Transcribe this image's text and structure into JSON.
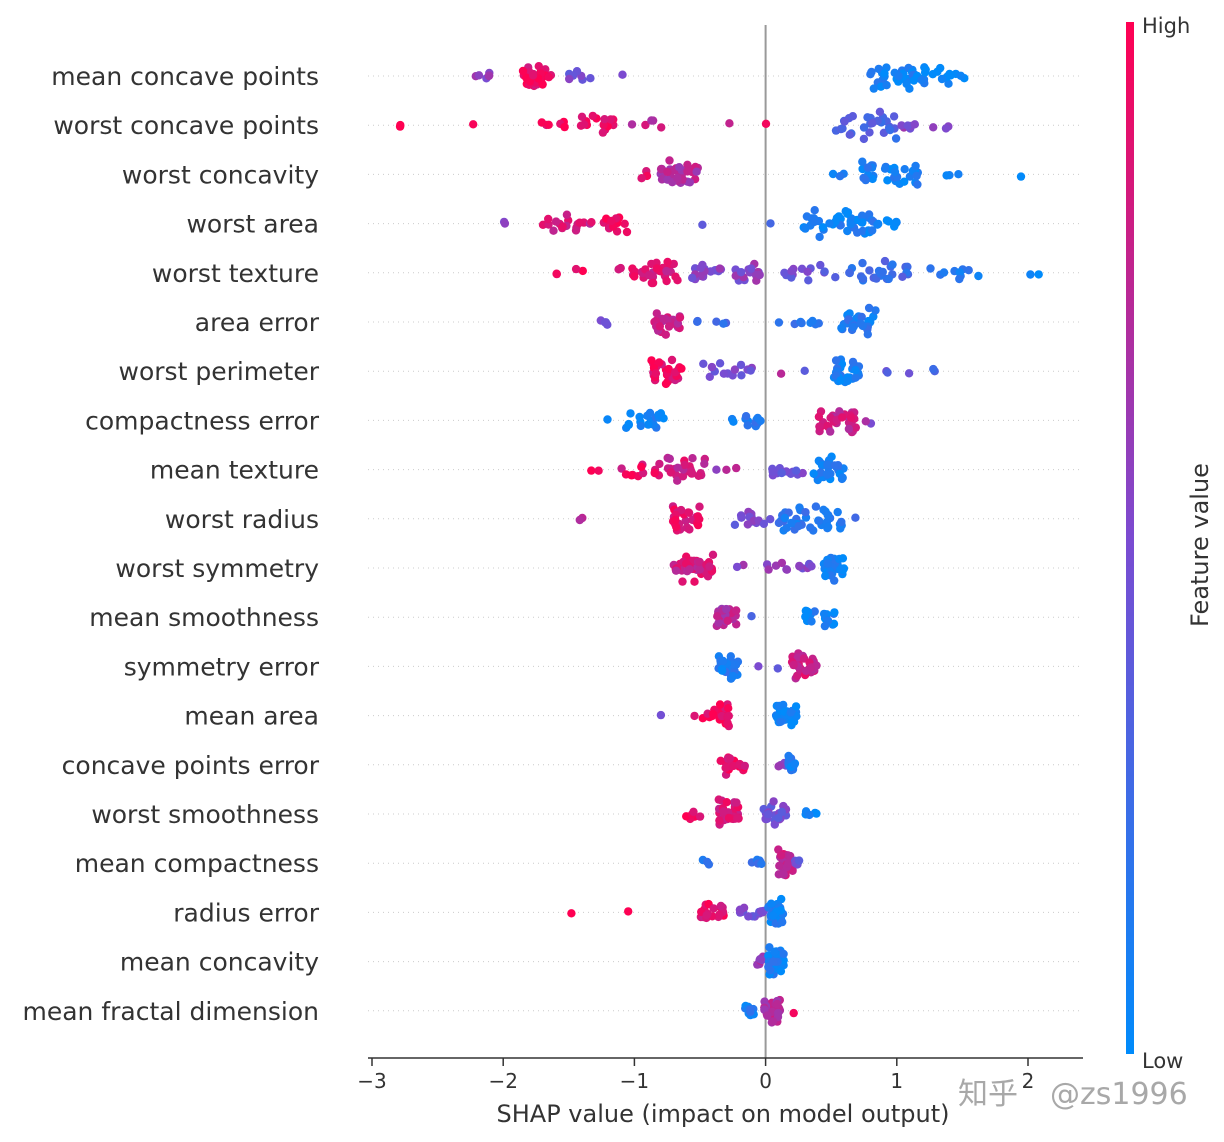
{
  "chart_data": {
    "type": "scatter",
    "subtype": "shap-beeswarm",
    "xlabel": "SHAP value (impact on model output)",
    "xlim": [
      -3,
      2.4
    ],
    "xticks": [
      -3,
      -2,
      -1,
      0,
      1,
      2
    ],
    "xtick_labels": [
      "−3",
      "−2",
      "−1",
      "0",
      "1",
      "2"
    ],
    "colorbar": {
      "label": "Feature value",
      "high_label": "High",
      "low_label": "Low",
      "high_color": "#ff0052",
      "low_color": "#008bfb"
    },
    "features": [
      {
        "name": "mean concave points",
        "clusters": [
          {
            "c": -1.75,
            "w": 0.12,
            "n": 30,
            "v": 0.92
          },
          {
            "c": -2.15,
            "w": 0.12,
            "n": 6,
            "v": 0.6
          },
          {
            "c": -1.4,
            "w": 0.12,
            "n": 8,
            "v": 0.45
          },
          {
            "c": -1.08,
            "w": 0.02,
            "n": 1,
            "v": 0.4
          },
          {
            "c": 1.0,
            "w": 0.22,
            "n": 36,
            "v": 0.06
          },
          {
            "c": 1.35,
            "w": 0.17,
            "n": 14,
            "v": 0.02
          }
        ]
      },
      {
        "name": "worst concave points",
        "clusters": [
          {
            "c": -2.75,
            "w": 0.06,
            "n": 2,
            "v": 1.0
          },
          {
            "c": -2.2,
            "w": 0.03,
            "n": 1,
            "v": 1.0
          },
          {
            "c": -1.65,
            "w": 0.14,
            "n": 6,
            "v": 0.95
          },
          {
            "c": -1.3,
            "w": 0.15,
            "n": 16,
            "v": 0.9
          },
          {
            "c": -0.88,
            "w": 0.14,
            "n": 5,
            "v": 0.78
          },
          {
            "c": -0.28,
            "w": 0.02,
            "n": 1,
            "v": 0.8
          },
          {
            "c": 0.02,
            "w": 0.02,
            "n": 1,
            "v": 0.85
          },
          {
            "c": 0.75,
            "w": 0.25,
            "n": 28,
            "v": 0.3
          },
          {
            "c": 1.2,
            "w": 0.2,
            "n": 9,
            "v": 0.55
          }
        ]
      },
      {
        "name": "worst concavity",
        "clusters": [
          {
            "c": -0.95,
            "w": 0.06,
            "n": 3,
            "v": 0.9
          },
          {
            "c": -0.65,
            "w": 0.15,
            "n": 36,
            "v": 0.72
          },
          {
            "c": 0.55,
            "w": 0.05,
            "n": 3,
            "v": 0.15
          },
          {
            "c": 0.95,
            "w": 0.22,
            "n": 32,
            "v": 0.08
          },
          {
            "c": 1.45,
            "w": 0.08,
            "n": 3,
            "v": 0.05
          },
          {
            "c": 1.95,
            "w": 0.02,
            "n": 1,
            "v": 0.02
          }
        ]
      },
      {
        "name": "worst area",
        "clusters": [
          {
            "c": -2.0,
            "w": 0.02,
            "n": 2,
            "v": 0.55
          },
          {
            "c": -1.5,
            "w": 0.2,
            "n": 18,
            "v": 0.82
          },
          {
            "c": -1.15,
            "w": 0.1,
            "n": 16,
            "v": 0.95
          },
          {
            "c": -0.5,
            "w": 0.02,
            "n": 1,
            "v": 0.4
          },
          {
            "c": 0.05,
            "w": 0.02,
            "n": 1,
            "v": 0.2
          },
          {
            "c": 0.55,
            "w": 0.28,
            "n": 48,
            "v": 0.08
          },
          {
            "c": 0.95,
            "w": 0.12,
            "n": 8,
            "v": 0.05
          }
        ]
      },
      {
        "name": "worst texture",
        "clusters": [
          {
            "c": -1.5,
            "w": 0.12,
            "n": 4,
            "v": 0.98
          },
          {
            "c": -1.1,
            "w": 0.15,
            "n": 6,
            "v": 0.9
          },
          {
            "c": -0.82,
            "w": 0.15,
            "n": 26,
            "v": 0.85
          },
          {
            "c": -0.45,
            "w": 0.12,
            "n": 18,
            "v": 0.55
          },
          {
            "c": -0.15,
            "w": 0.12,
            "n": 16,
            "v": 0.55
          },
          {
            "c": 0.35,
            "w": 0.22,
            "n": 14,
            "v": 0.45
          },
          {
            "c": 0.85,
            "w": 0.25,
            "n": 26,
            "v": 0.25
          },
          {
            "c": 1.45,
            "w": 0.2,
            "n": 10,
            "v": 0.1
          },
          {
            "c": 2.08,
            "w": 0.08,
            "n": 2,
            "v": 0.05
          }
        ]
      },
      {
        "name": "area error",
        "clusters": [
          {
            "c": -1.22,
            "w": 0.05,
            "n": 4,
            "v": 0.45
          },
          {
            "c": -0.75,
            "w": 0.1,
            "n": 24,
            "v": 0.78
          },
          {
            "c": -0.42,
            "w": 0.15,
            "n": 5,
            "v": 0.25
          },
          {
            "c": 0.25,
            "w": 0.2,
            "n": 8,
            "v": 0.15
          },
          {
            "c": 0.7,
            "w": 0.15,
            "n": 28,
            "v": 0.12
          }
        ]
      },
      {
        "name": "worst perimeter",
        "clusters": [
          {
            "c": -0.75,
            "w": 0.12,
            "n": 28,
            "v": 0.9
          },
          {
            "c": -0.3,
            "w": 0.2,
            "n": 14,
            "v": 0.5
          },
          {
            "c": 0.1,
            "w": 0.02,
            "n": 1,
            "v": 0.7
          },
          {
            "c": 0.3,
            "w": 0.02,
            "n": 1,
            "v": 0.4
          },
          {
            "c": 0.62,
            "w": 0.1,
            "n": 32,
            "v": 0.08
          },
          {
            "c": 1.05,
            "w": 0.25,
            "n": 5,
            "v": 0.35
          }
        ]
      },
      {
        "name": "compactness error",
        "clusters": [
          {
            "c": -1.22,
            "w": 0.02,
            "n": 1,
            "v": 0.1
          },
          {
            "c": -0.92,
            "w": 0.15,
            "n": 18,
            "v": 0.08
          },
          {
            "c": -0.15,
            "w": 0.12,
            "n": 14,
            "v": 0.12
          },
          {
            "c": 0.55,
            "w": 0.15,
            "n": 34,
            "v": 0.8
          },
          {
            "c": 0.78,
            "w": 0.03,
            "n": 2,
            "v": 0.6
          }
        ]
      },
      {
        "name": "mean texture",
        "clusters": [
          {
            "c": -1.3,
            "w": 0.03,
            "n": 2,
            "v": 1.0
          },
          {
            "c": -0.95,
            "w": 0.15,
            "n": 12,
            "v": 0.9
          },
          {
            "c": -0.6,
            "w": 0.15,
            "n": 26,
            "v": 0.82
          },
          {
            "c": -0.3,
            "w": 0.08,
            "n": 3,
            "v": 0.65
          },
          {
            "c": 0.15,
            "w": 0.15,
            "n": 12,
            "v": 0.45
          },
          {
            "c": 0.48,
            "w": 0.12,
            "n": 30,
            "v": 0.1
          }
        ]
      },
      {
        "name": "worst radius",
        "clusters": [
          {
            "c": -1.4,
            "w": 0.04,
            "n": 2,
            "v": 0.75
          },
          {
            "c": -0.6,
            "w": 0.12,
            "n": 28,
            "v": 0.88
          },
          {
            "c": -0.1,
            "w": 0.15,
            "n": 14,
            "v": 0.48
          },
          {
            "c": 0.35,
            "w": 0.25,
            "n": 42,
            "v": 0.15
          },
          {
            "c": 0.68,
            "w": 0.02,
            "n": 1,
            "v": 0.3
          }
        ]
      },
      {
        "name": "worst symmetry",
        "clusters": [
          {
            "c": -0.55,
            "w": 0.15,
            "n": 36,
            "v": 0.82
          },
          {
            "c": -0.2,
            "w": 0.04,
            "n": 2,
            "v": 0.6
          },
          {
            "c": 0.1,
            "w": 0.1,
            "n": 6,
            "v": 0.55
          },
          {
            "c": 0.3,
            "w": 0.05,
            "n": 6,
            "v": 0.5
          },
          {
            "c": 0.52,
            "w": 0.08,
            "n": 30,
            "v": 0.06
          }
        ]
      },
      {
        "name": "mean smoothness",
        "clusters": [
          {
            "c": -0.3,
            "w": 0.08,
            "n": 34,
            "v": 0.72
          },
          {
            "c": -0.1,
            "w": 0.01,
            "n": 1,
            "v": 0.3
          },
          {
            "c": 0.42,
            "w": 0.12,
            "n": 18,
            "v": 0.06
          }
        ]
      },
      {
        "name": "symmetry error",
        "clusters": [
          {
            "c": -0.28,
            "w": 0.08,
            "n": 28,
            "v": 0.12
          },
          {
            "c": -0.05,
            "w": 0.01,
            "n": 1,
            "v": 0.4
          },
          {
            "c": 0.1,
            "w": 0.01,
            "n": 1,
            "v": 0.3
          },
          {
            "c": 0.3,
            "w": 0.1,
            "n": 30,
            "v": 0.82
          }
        ]
      },
      {
        "name": "mean area",
        "clusters": [
          {
            "c": -0.8,
            "w": 0.01,
            "n": 1,
            "v": 0.55
          },
          {
            "c": -0.55,
            "w": 0.01,
            "n": 1,
            "v": 0.78
          },
          {
            "c": -0.38,
            "w": 0.1,
            "n": 24,
            "v": 0.95
          },
          {
            "c": 0.16,
            "w": 0.08,
            "n": 34,
            "v": 0.05
          }
        ]
      },
      {
        "name": "concave points error",
        "clusters": [
          {
            "c": -0.25,
            "w": 0.1,
            "n": 18,
            "v": 0.92
          },
          {
            "c": 0.12,
            "w": 0.05,
            "n": 4,
            "v": 0.55
          },
          {
            "c": 0.2,
            "w": 0.03,
            "n": 16,
            "v": 0.12
          }
        ]
      },
      {
        "name": "worst smoothness",
        "clusters": [
          {
            "c": -0.55,
            "w": 0.1,
            "n": 6,
            "v": 0.95
          },
          {
            "c": -0.28,
            "w": 0.08,
            "n": 32,
            "v": 0.85
          },
          {
            "c": 0.08,
            "w": 0.1,
            "n": 22,
            "v": 0.45
          },
          {
            "c": 0.33,
            "w": 0.06,
            "n": 6,
            "v": 0.08
          }
        ]
      },
      {
        "name": "mean compactness",
        "clusters": [
          {
            "c": -0.42,
            "w": 0.06,
            "n": 3,
            "v": 0.1
          },
          {
            "c": -0.1,
            "w": 0.08,
            "n": 6,
            "v": 0.15
          },
          {
            "c": 0.15,
            "w": 0.06,
            "n": 32,
            "v": 0.78
          },
          {
            "c": 0.22,
            "w": 0.04,
            "n": 4,
            "v": 0.45
          }
        ]
      },
      {
        "name": "radius error",
        "clusters": [
          {
            "c": -1.48,
            "w": 0.01,
            "n": 1,
            "v": 1.0
          },
          {
            "c": -1.05,
            "w": 0.01,
            "n": 1,
            "v": 0.95
          },
          {
            "c": -0.4,
            "w": 0.1,
            "n": 22,
            "v": 0.9
          },
          {
            "c": -0.1,
            "w": 0.1,
            "n": 14,
            "v": 0.45
          },
          {
            "c": 0.08,
            "w": 0.06,
            "n": 38,
            "v": 0.08
          }
        ]
      },
      {
        "name": "mean concavity",
        "clusters": [
          {
            "c": -0.05,
            "w": 0.03,
            "n": 8,
            "v": 0.65
          },
          {
            "c": 0.08,
            "w": 0.06,
            "n": 40,
            "v": 0.08
          }
        ]
      },
      {
        "name": "mean fractal dimension",
        "clusters": [
          {
            "c": -0.1,
            "w": 0.06,
            "n": 10,
            "v": 0.1
          },
          {
            "c": 0.05,
            "w": 0.06,
            "n": 38,
            "v": 0.72
          },
          {
            "c": 0.22,
            "w": 0.01,
            "n": 1,
            "v": 1.0
          }
        ]
      }
    ]
  },
  "watermark": {
    "logo_text": "知乎",
    "user_text": "@zs1996"
  }
}
